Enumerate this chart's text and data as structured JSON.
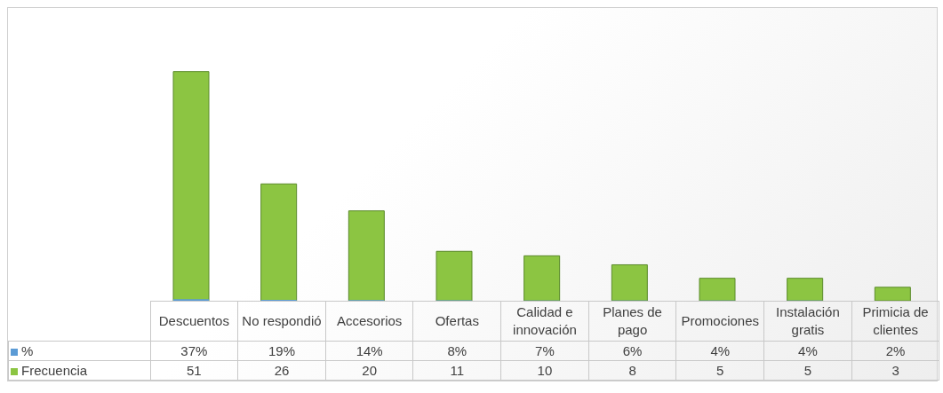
{
  "chart_data": {
    "type": "bar",
    "categories": [
      "Descuentos",
      "No respondió",
      "Accesorios",
      "Ofertas",
      "Calidad e innovación",
      "Planes de pago",
      "Promociones",
      "Instalación gratis",
      "Primicia de clientes"
    ],
    "series": [
      {
        "name": "%",
        "color": "#5b9bd5",
        "values": [
          0.37,
          0.19,
          0.14,
          0.08,
          0.07,
          0.06,
          0.04,
          0.04,
          0.02
        ],
        "value_labels": [
          "37%",
          "19%",
          "14%",
          "8%",
          "7%",
          "6%",
          "4%",
          "4%",
          "2%"
        ]
      },
      {
        "name": "Frecuencia",
        "color": "#8cc542",
        "values": [
          51,
          26,
          20,
          11,
          10,
          8,
          5,
          5,
          3
        ]
      }
    ],
    "data_labels": true,
    "legend": "bottom"
  }
}
